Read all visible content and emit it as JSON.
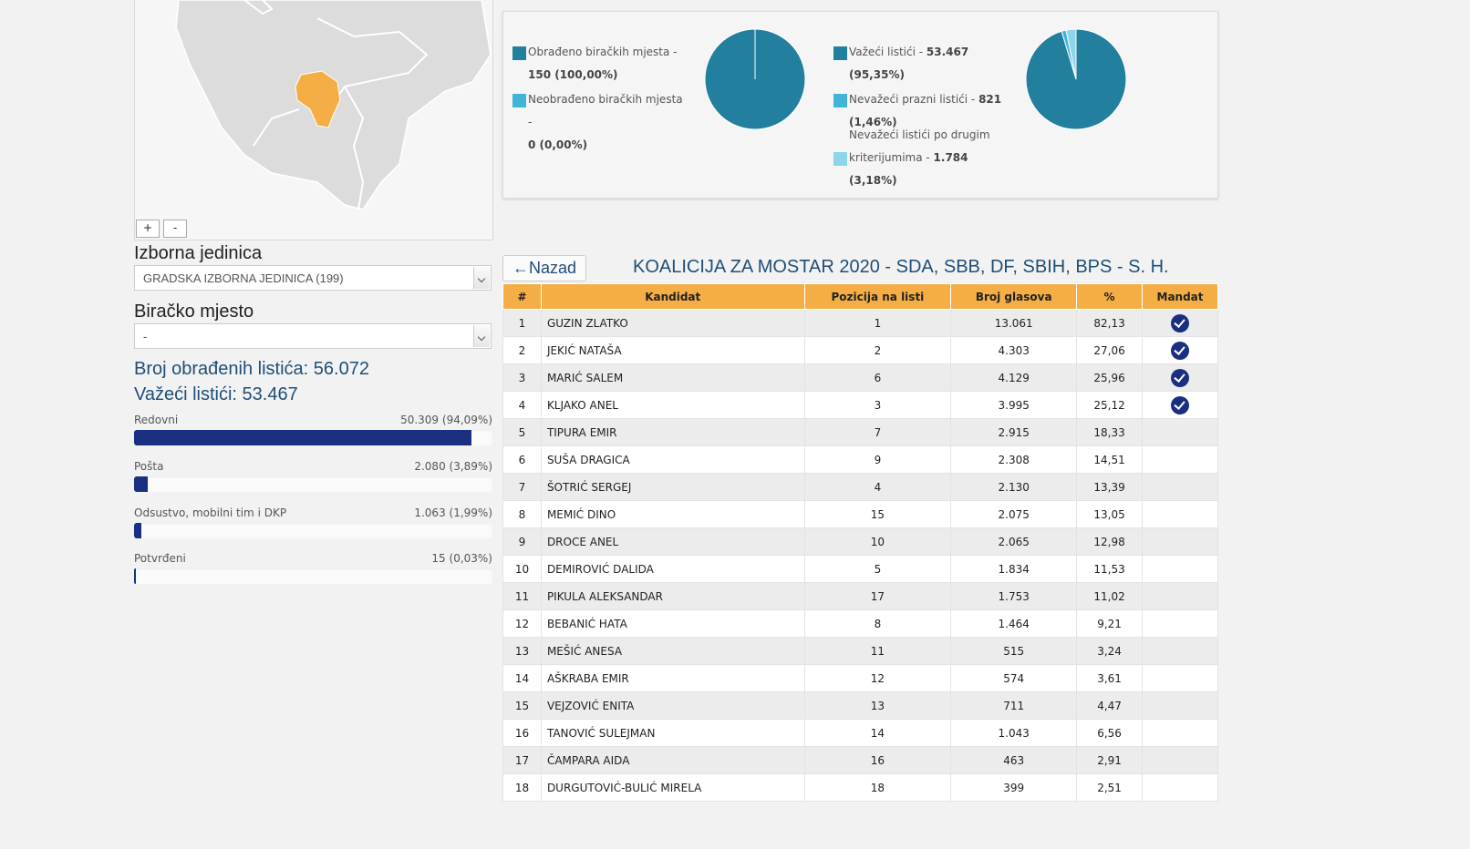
{
  "map": {
    "zoom_in": "+",
    "zoom_out": "-"
  },
  "left": {
    "unit_label": "Izborna jedinica",
    "unit_value": "GRADSKA IZBORNA JEDINICA (199)",
    "station_label": "Biračko mjesto",
    "station_value": "-",
    "processed_line": "Broj obrađenih listića: 56.072",
    "valid_line": "Važeći listići: 53.467",
    "bars": [
      {
        "name": "Redovni",
        "value": "50.309 (94,09%)",
        "fraction": 0.9409
      },
      {
        "name": "Pošta",
        "value": "2.080 (3,89%)",
        "fraction": 0.0389
      },
      {
        "name": "Odsustvo, mobilni tim i DKP",
        "value": "1.063 (1,99%)",
        "fraction": 0.0199
      },
      {
        "name": "Potvrđeni",
        "value": "15 (0,03%)",
        "fraction": 0.0003
      }
    ]
  },
  "stats": {
    "legend1": [
      {
        "text1": "Obrađeno biračkih mjesta -",
        "text2": "150 (100,00%)",
        "color": "#227f9e"
      },
      {
        "text1": "Neobrađeno biračkih mjesta -",
        "text2": "0 (0,00%)",
        "color": "#41b5d8"
      }
    ],
    "legend2": [
      {
        "text1": "Važeći listići - ",
        "bold1": "53.467",
        "text2": "(95,35%)",
        "color": "#227f9e"
      },
      {
        "text1": "Nevažeći prazni listići - ",
        "bold1": "821",
        "text2": "(1,46%)",
        "color": "#41b5d8"
      },
      {
        "text1": "Nevažeći listići po drugim",
        "text1b": "kriterijumima - ",
        "bold1": "1.784",
        "text2": "(3,18%)",
        "color": "#8ed4ea"
      }
    ]
  },
  "chart_data": [
    {
      "type": "pie",
      "categories": [
        "Obrađeno biračkih mjesta",
        "Neobrađeno biračkih mjesta"
      ],
      "values": [
        150,
        0
      ],
      "colors": [
        "#227f9e",
        "#41b5d8"
      ]
    },
    {
      "type": "pie",
      "categories": [
        "Važeći listići",
        "Nevažeći prazni listići",
        "Nevažeći listići po drugim kriterijumima"
      ],
      "values": [
        53467,
        821,
        1784
      ],
      "colors": [
        "#227f9e",
        "#41b5d8",
        "#8ed4ea"
      ]
    }
  ],
  "table": {
    "back_label": "Nazad",
    "title": "KOALICIJA ZA MOSTAR 2020 - SDA, SBB, DF, SBIH, BPS - S. H.",
    "headers": [
      "#",
      "Kandidat",
      "Pozicija na listi",
      "Broj glasova",
      "%",
      "Mandat"
    ],
    "rows": [
      {
        "n": "1",
        "name": "GUZIN ZLATKO",
        "pos": "1",
        "votes": "13.061",
        "pct": "82,13",
        "mandate": true
      },
      {
        "n": "2",
        "name": "JEKIĆ NATAŠA",
        "pos": "2",
        "votes": "4.303",
        "pct": "27,06",
        "mandate": true
      },
      {
        "n": "3",
        "name": "MARIĆ SALEM",
        "pos": "6",
        "votes": "4.129",
        "pct": "25,96",
        "mandate": true
      },
      {
        "n": "4",
        "name": "KLJAKO ANEL",
        "pos": "3",
        "votes": "3.995",
        "pct": "25,12",
        "mandate": true
      },
      {
        "n": "5",
        "name": "TIPURA EMIR",
        "pos": "7",
        "votes": "2.915",
        "pct": "18,33",
        "mandate": false
      },
      {
        "n": "6",
        "name": "SUŠA DRAGICA",
        "pos": "9",
        "votes": "2.308",
        "pct": "14,51",
        "mandate": false
      },
      {
        "n": "7",
        "name": "ŠOTRIĆ SERGEJ",
        "pos": "4",
        "votes": "2.130",
        "pct": "13,39",
        "mandate": false
      },
      {
        "n": "8",
        "name": "MEMIĆ DINO",
        "pos": "15",
        "votes": "2.075",
        "pct": "13,05",
        "mandate": false
      },
      {
        "n": "9",
        "name": "DROCE ANEL",
        "pos": "10",
        "votes": "2.065",
        "pct": "12,98",
        "mandate": false
      },
      {
        "n": "10",
        "name": "DEMIROVIĆ DALIDA",
        "pos": "5",
        "votes": "1.834",
        "pct": "11,53",
        "mandate": false
      },
      {
        "n": "11",
        "name": "PIKULA ALEKSANDAR",
        "pos": "17",
        "votes": "1.753",
        "pct": "11,02",
        "mandate": false
      },
      {
        "n": "12",
        "name": "BEBANIĆ HATA",
        "pos": "8",
        "votes": "1.464",
        "pct": "9,21",
        "mandate": false
      },
      {
        "n": "13",
        "name": "MEŠIĆ ANESA",
        "pos": "11",
        "votes": "515",
        "pct": "3,24",
        "mandate": false
      },
      {
        "n": "14",
        "name": "AŠKRABA EMIR",
        "pos": "12",
        "votes": "574",
        "pct": "3,61",
        "mandate": false
      },
      {
        "n": "15",
        "name": "VEJZOVIĆ ENITA",
        "pos": "13",
        "votes": "711",
        "pct": "4,47",
        "mandate": false
      },
      {
        "n": "16",
        "name": "TANOVIĆ SULEJMAN",
        "pos": "14",
        "votes": "1.043",
        "pct": "6,56",
        "mandate": false
      },
      {
        "n": "17",
        "name": "ČAMPARA AIDA",
        "pos": "16",
        "votes": "463",
        "pct": "2,91",
        "mandate": false
      },
      {
        "n": "18",
        "name": "DURGUTOVIĆ-BULIĆ MIRELA",
        "pos": "18",
        "votes": "399",
        "pct": "2,51",
        "mandate": false
      }
    ]
  }
}
